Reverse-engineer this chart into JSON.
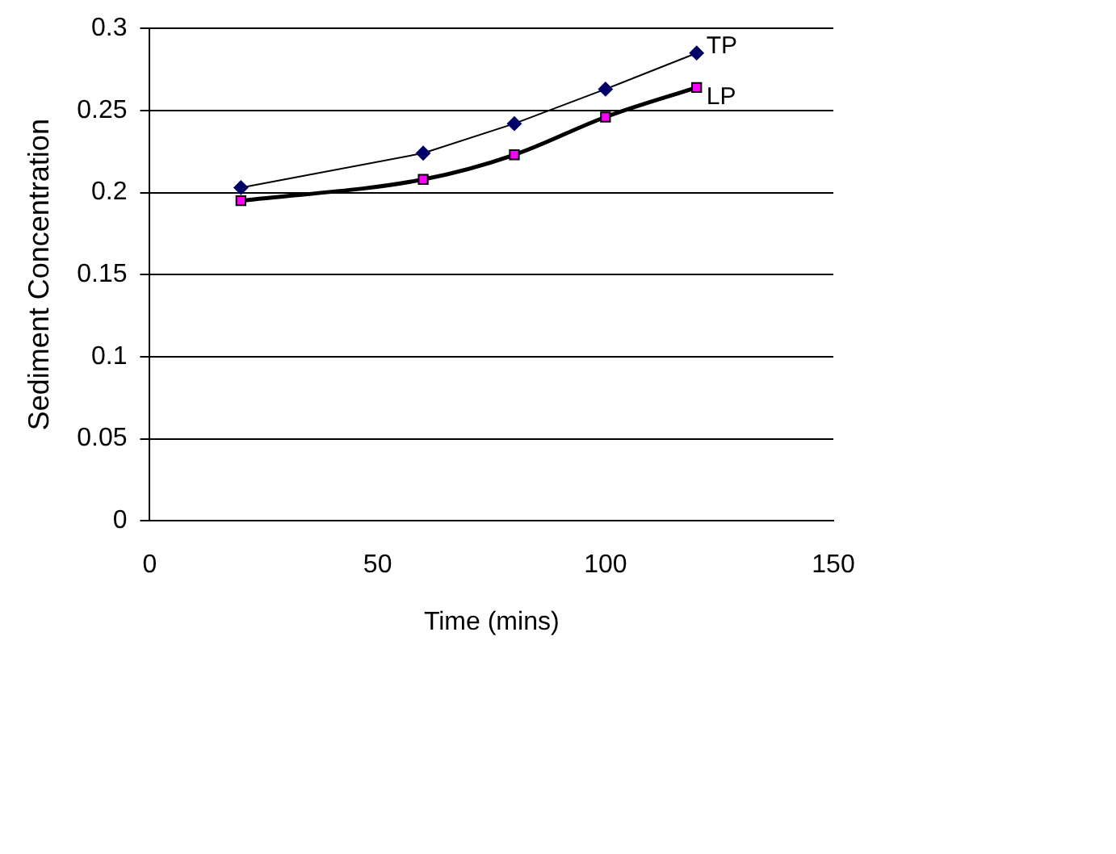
{
  "chart_data": {
    "type": "line",
    "xlabel": "Time (mins)",
    "ylabel": "Sediment Concentration",
    "x": [
      20,
      60,
      80,
      100,
      120
    ],
    "series": [
      {
        "name": "TP",
        "color": "#000066",
        "marker": "diamond",
        "values": [
          0.203,
          0.224,
          0.242,
          0.263,
          0.285
        ]
      },
      {
        "name": "LP",
        "color": "#ff00ff",
        "marker": "square",
        "values": [
          0.195,
          0.208,
          0.223,
          0.246,
          0.264
        ]
      }
    ],
    "xlim": [
      0,
      150
    ],
    "xticks": [
      0,
      50,
      100,
      150
    ],
    "ylim": [
      0,
      0.3
    ],
    "yticks": [
      0,
      0.05,
      0.1,
      0.15,
      0.2,
      0.25,
      0.3
    ],
    "grid": "y",
    "legend": false
  }
}
